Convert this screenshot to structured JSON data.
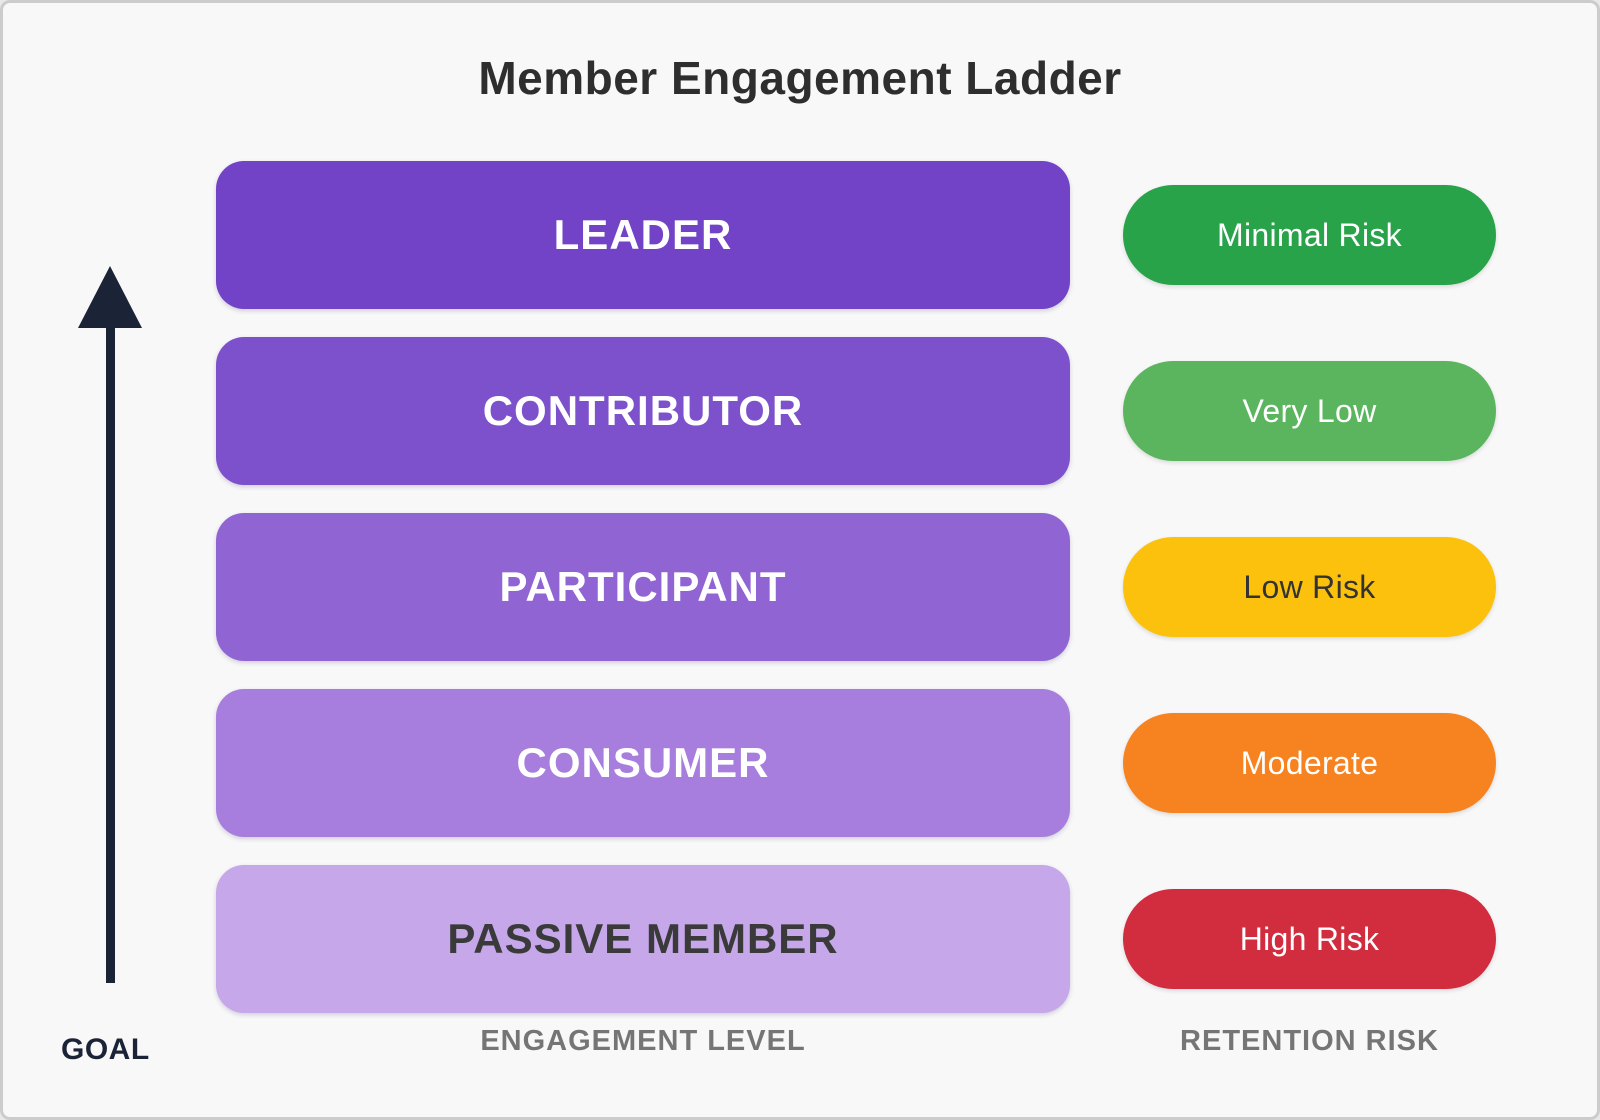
{
  "title": "Member Engagement Ladder",
  "goal": {
    "label": "GOAL"
  },
  "axis": {
    "engagement": "ENGAGEMENT LEVEL",
    "retention": "RETENTION RISK"
  },
  "ladder": [
    {
      "level": "LEADER",
      "bar_color": "#7243c6",
      "bar_text_color": "#ffffff",
      "risk_label": "Minimal Risk",
      "risk_color": "#28a34a",
      "risk_text_color": "#ffffff"
    },
    {
      "level": "CONTRIBUTOR",
      "bar_color": "#7e51cc",
      "bar_text_color": "#ffffff",
      "risk_label": "Very Low",
      "risk_color": "#5bb55e",
      "risk_text_color": "#ffffff"
    },
    {
      "level": "PARTICIPANT",
      "bar_color": "#9164d4",
      "bar_text_color": "#ffffff",
      "risk_label": "Low Risk",
      "risk_color": "#fcc10d",
      "risk_text_color": "#333333"
    },
    {
      "level": "CONSUMER",
      "bar_color": "#a77edd",
      "bar_text_color": "#ffffff",
      "risk_label": "Moderate",
      "risk_color": "#f6831f",
      "risk_text_color": "#ffffff"
    },
    {
      "level": "PASSIVE MEMBER",
      "bar_color": "#c5a7ea",
      "bar_text_color": "#3a3a3a",
      "risk_label": "High Risk",
      "risk_color": "#d22c3f",
      "risk_text_color": "#ffffff"
    }
  ],
  "colors": {
    "background": "#f8f8f9",
    "border": "#cccccc",
    "title": "#2e2e2e",
    "arrow": "#1b2337",
    "axis_label": "#757575"
  }
}
